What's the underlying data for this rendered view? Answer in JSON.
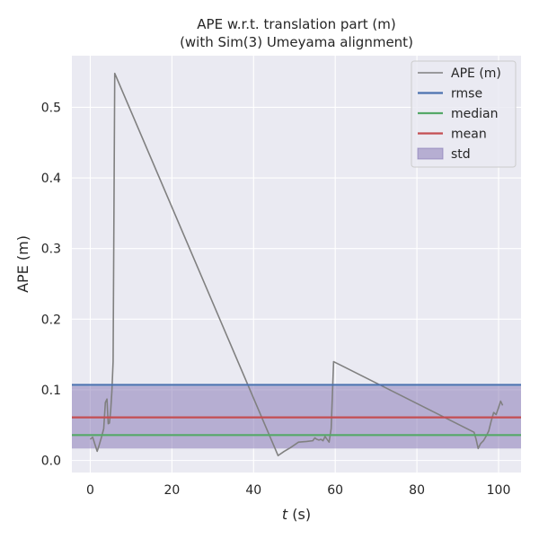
{
  "chart_data": {
    "type": "line",
    "title_line1": "APE w.r.t. translation part (m)",
    "title_line2": "(with Sim(3) Umeyama alignment)",
    "xlabel_italic": "t",
    "xlabel_rest": " (s)",
    "ylabel": "APE (m)",
    "xlim": [
      -4.5,
      105.5
    ],
    "ylim": [
      -0.017,
      0.573
    ],
    "x_ticks": [
      0,
      20,
      40,
      60,
      80,
      100
    ],
    "y_ticks": [
      0.0,
      0.1,
      0.2,
      0.3,
      0.4,
      0.5
    ],
    "x_tick_labels": [
      "0",
      "20",
      "40",
      "60",
      "80",
      "100"
    ],
    "y_tick_labels": [
      "0.0",
      "0.1",
      "0.2",
      "0.3",
      "0.4",
      "0.5"
    ],
    "grid": true,
    "legend_position": "top-right",
    "colors": {
      "background": "#eaeaf2",
      "ape": "#808080",
      "rmse": "#4c72b0",
      "median": "#55a868",
      "mean": "#c44e52",
      "std": "#8172b2"
    },
    "stats": {
      "rmse": 0.107,
      "median": 0.036,
      "mean": 0.061,
      "std_lower": 0.017,
      "std_upper": 0.105
    },
    "legend": [
      {
        "key": "ape",
        "label": "APE (m)",
        "kind": "line"
      },
      {
        "key": "rmse",
        "label": "rmse",
        "kind": "line"
      },
      {
        "key": "median",
        "label": "median",
        "kind": "line"
      },
      {
        "key": "mean",
        "label": "mean",
        "kind": "line"
      },
      {
        "key": "std",
        "label": "std",
        "kind": "patch"
      }
    ],
    "series": [
      {
        "name": "APE (m)",
        "x": [
          0.0,
          0.6,
          1.2,
          1.7,
          2.2,
          2.8,
          3.3,
          3.7,
          4.1,
          4.4,
          4.7,
          5.0,
          5.3,
          5.6,
          6.0,
          46.0,
          47.5,
          49.0,
          51.0,
          53.0,
          54.5,
          55.0,
          55.5,
          56.0,
          56.5,
          57.0,
          57.5,
          58.0,
          58.5,
          59.0,
          59.6,
          94.0,
          94.5,
          95.0,
          95.6,
          96.3,
          97.0,
          97.6,
          98.2,
          98.8,
          99.4,
          100.0,
          100.5,
          101.0
        ],
        "y": [
          0.03,
          0.033,
          0.022,
          0.013,
          0.022,
          0.034,
          0.045,
          0.082,
          0.087,
          0.052,
          0.053,
          0.07,
          0.098,
          0.14,
          0.548,
          0.007,
          0.013,
          0.018,
          0.026,
          0.027,
          0.028,
          0.032,
          0.03,
          0.029,
          0.03,
          0.028,
          0.034,
          0.03,
          0.026,
          0.045,
          0.14,
          0.04,
          0.03,
          0.017,
          0.024,
          0.028,
          0.035,
          0.042,
          0.056,
          0.068,
          0.065,
          0.075,
          0.084,
          0.078
        ]
      }
    ]
  }
}
